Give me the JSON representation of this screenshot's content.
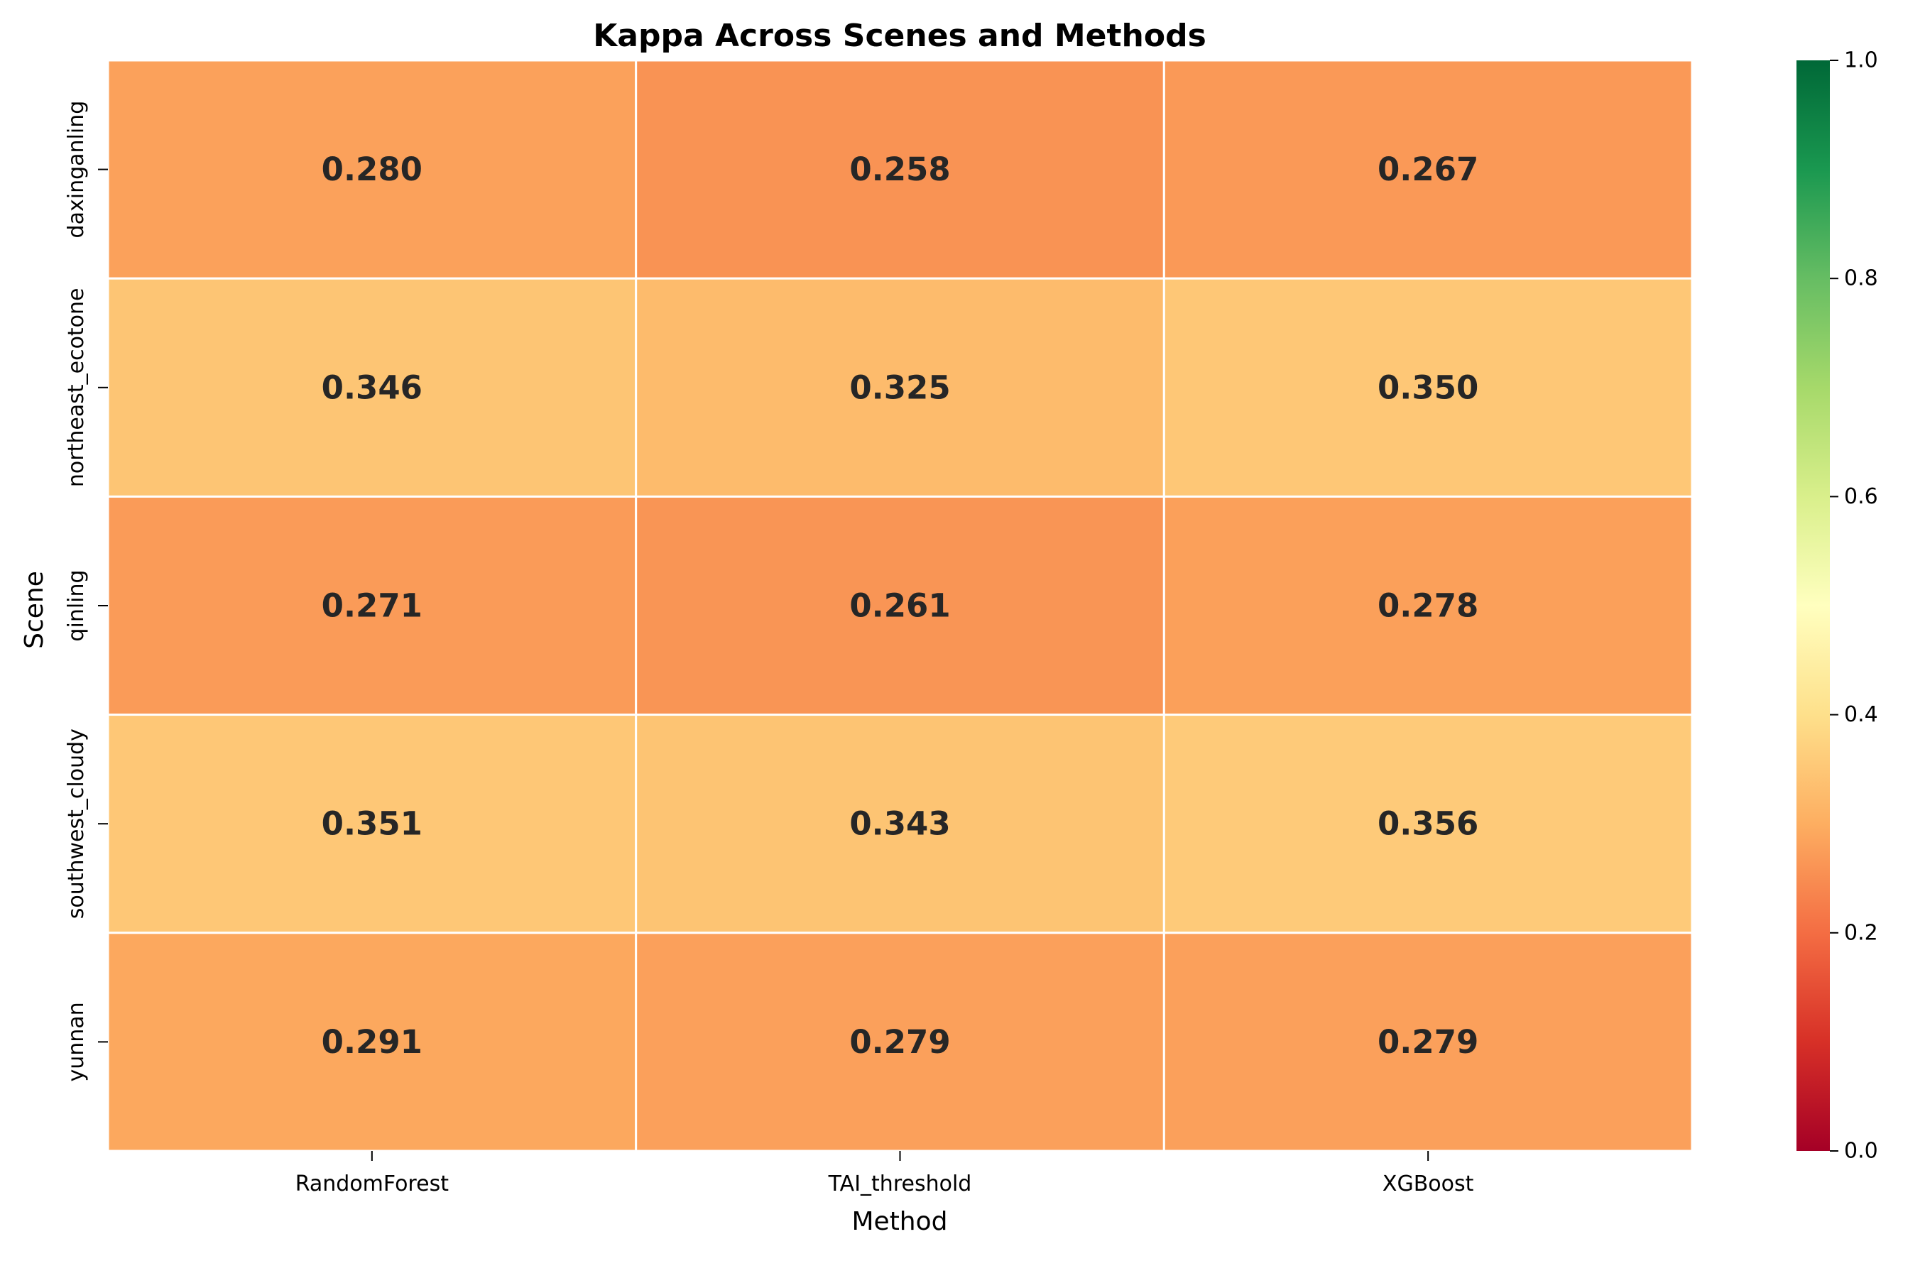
{
  "chart_data": {
    "type": "heatmap",
    "title": "Kappa Across Scenes and Methods",
    "xlabel": "Method",
    "ylabel": "Scene",
    "x_categories": [
      "RandomForest",
      "TAI_threshold",
      "XGBoost"
    ],
    "y_categories": [
      "daxinganling",
      "northeast_ecotone",
      "qinling",
      "southwest_cloudy",
      "yunnan"
    ],
    "values": [
      [
        0.28,
        0.258,
        0.267
      ],
      [
        0.346,
        0.325,
        0.35
      ],
      [
        0.271,
        0.261,
        0.278
      ],
      [
        0.351,
        0.343,
        0.356
      ],
      [
        0.291,
        0.279,
        0.279
      ]
    ],
    "value_labels": [
      [
        "0.280",
        "0.258",
        "0.267"
      ],
      [
        "0.346",
        "0.325",
        "0.350"
      ],
      [
        "0.271",
        "0.261",
        "0.278"
      ],
      [
        "0.351",
        "0.343",
        "0.356"
      ],
      [
        "0.291",
        "0.279",
        "0.279"
      ]
    ],
    "colormap": "RdYlGn",
    "vmin": 0.0,
    "vmax": 1.0,
    "colorbar_ticks": [
      "0.0",
      "0.2",
      "0.4",
      "0.6",
      "0.8",
      "1.0"
    ],
    "cell_border_color": "#ffffff",
    "grid": false,
    "legend": "colorbar-right"
  }
}
